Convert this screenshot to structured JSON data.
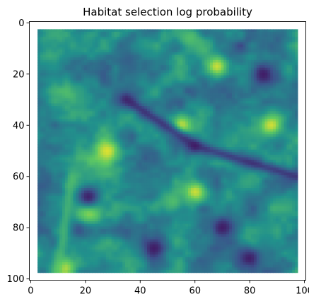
{
  "chart_data": {
    "type": "heatmap",
    "title": "Habitat selection log probability",
    "xlabel": "",
    "ylabel": "",
    "xlim": [
      -0.5,
      100.5
    ],
    "ylim": [
      100.5,
      -0.5
    ],
    "y_axis_inverted": true,
    "x_ticks": [
      0,
      20,
      40,
      60,
      80,
      100
    ],
    "y_ticks": [
      0,
      20,
      40,
      60,
      80,
      100
    ],
    "x_tick_labels": [
      "0",
      "20",
      "40",
      "60",
      "80",
      "100"
    ],
    "y_tick_labels": [
      "0",
      "20",
      "40",
      "60",
      "80",
      "100"
    ],
    "data_extent": {
      "x": [
        2.5,
        97.5
      ],
      "y": [
        2.5,
        97.5
      ]
    },
    "colormap": "viridis",
    "colorbar": false,
    "grid": false,
    "background_color": "#ffffff",
    "colors": {
      "low": "#3b1f6e",
      "mid_low": "#2b5a8c",
      "mid": "#23898e",
      "mid_high": "#3fb87a",
      "high": "#cfe24a"
    },
    "features": [
      {
        "kind": "bright_patch",
        "x": 68,
        "y": 17,
        "value": "high"
      },
      {
        "kind": "bright_patch",
        "x": 58,
        "y": 6,
        "value": "mid_high"
      },
      {
        "kind": "bright_patch",
        "x": 55,
        "y": 40,
        "value": "high"
      },
      {
        "kind": "bright_patch",
        "x": 88,
        "y": 40,
        "value": "high"
      },
      {
        "kind": "bright_patch",
        "x": 28,
        "y": 50,
        "value": "high"
      },
      {
        "kind": "bright_patch",
        "x": 60,
        "y": 66,
        "value": "high"
      },
      {
        "kind": "bright_patch",
        "x": 52,
        "y": 70,
        "value": "mid_high"
      },
      {
        "kind": "bright_patch",
        "x": 21,
        "y": 73,
        "value": "high"
      },
      {
        "kind": "bright_patch",
        "x": 12,
        "y": 96,
        "value": "high"
      },
      {
        "kind": "dark_patch",
        "x": 21,
        "y": 68,
        "value": "low"
      },
      {
        "kind": "dark_patch",
        "x": 45,
        "y": 88,
        "value": "low"
      },
      {
        "kind": "dark_patch",
        "x": 70,
        "y": 80,
        "value": "low"
      },
      {
        "kind": "dark_patch",
        "x": 80,
        "y": 92,
        "value": "low"
      },
      {
        "kind": "dark_patch",
        "x": 85,
        "y": 20,
        "value": "low"
      },
      {
        "kind": "dark_patch",
        "x": 35,
        "y": 30,
        "value": "mid_low"
      },
      {
        "kind": "ridge_line",
        "from": [
          35,
          30
        ],
        "to": [
          60,
          48
        ],
        "value": "low"
      },
      {
        "kind": "ridge_line",
        "from": [
          60,
          48
        ],
        "to": [
          97,
          60
        ],
        "value": "low"
      },
      {
        "kind": "ridge_line",
        "from": [
          15,
          60
        ],
        "to": [
          10,
          97
        ],
        "value": "mid_high"
      }
    ]
  }
}
